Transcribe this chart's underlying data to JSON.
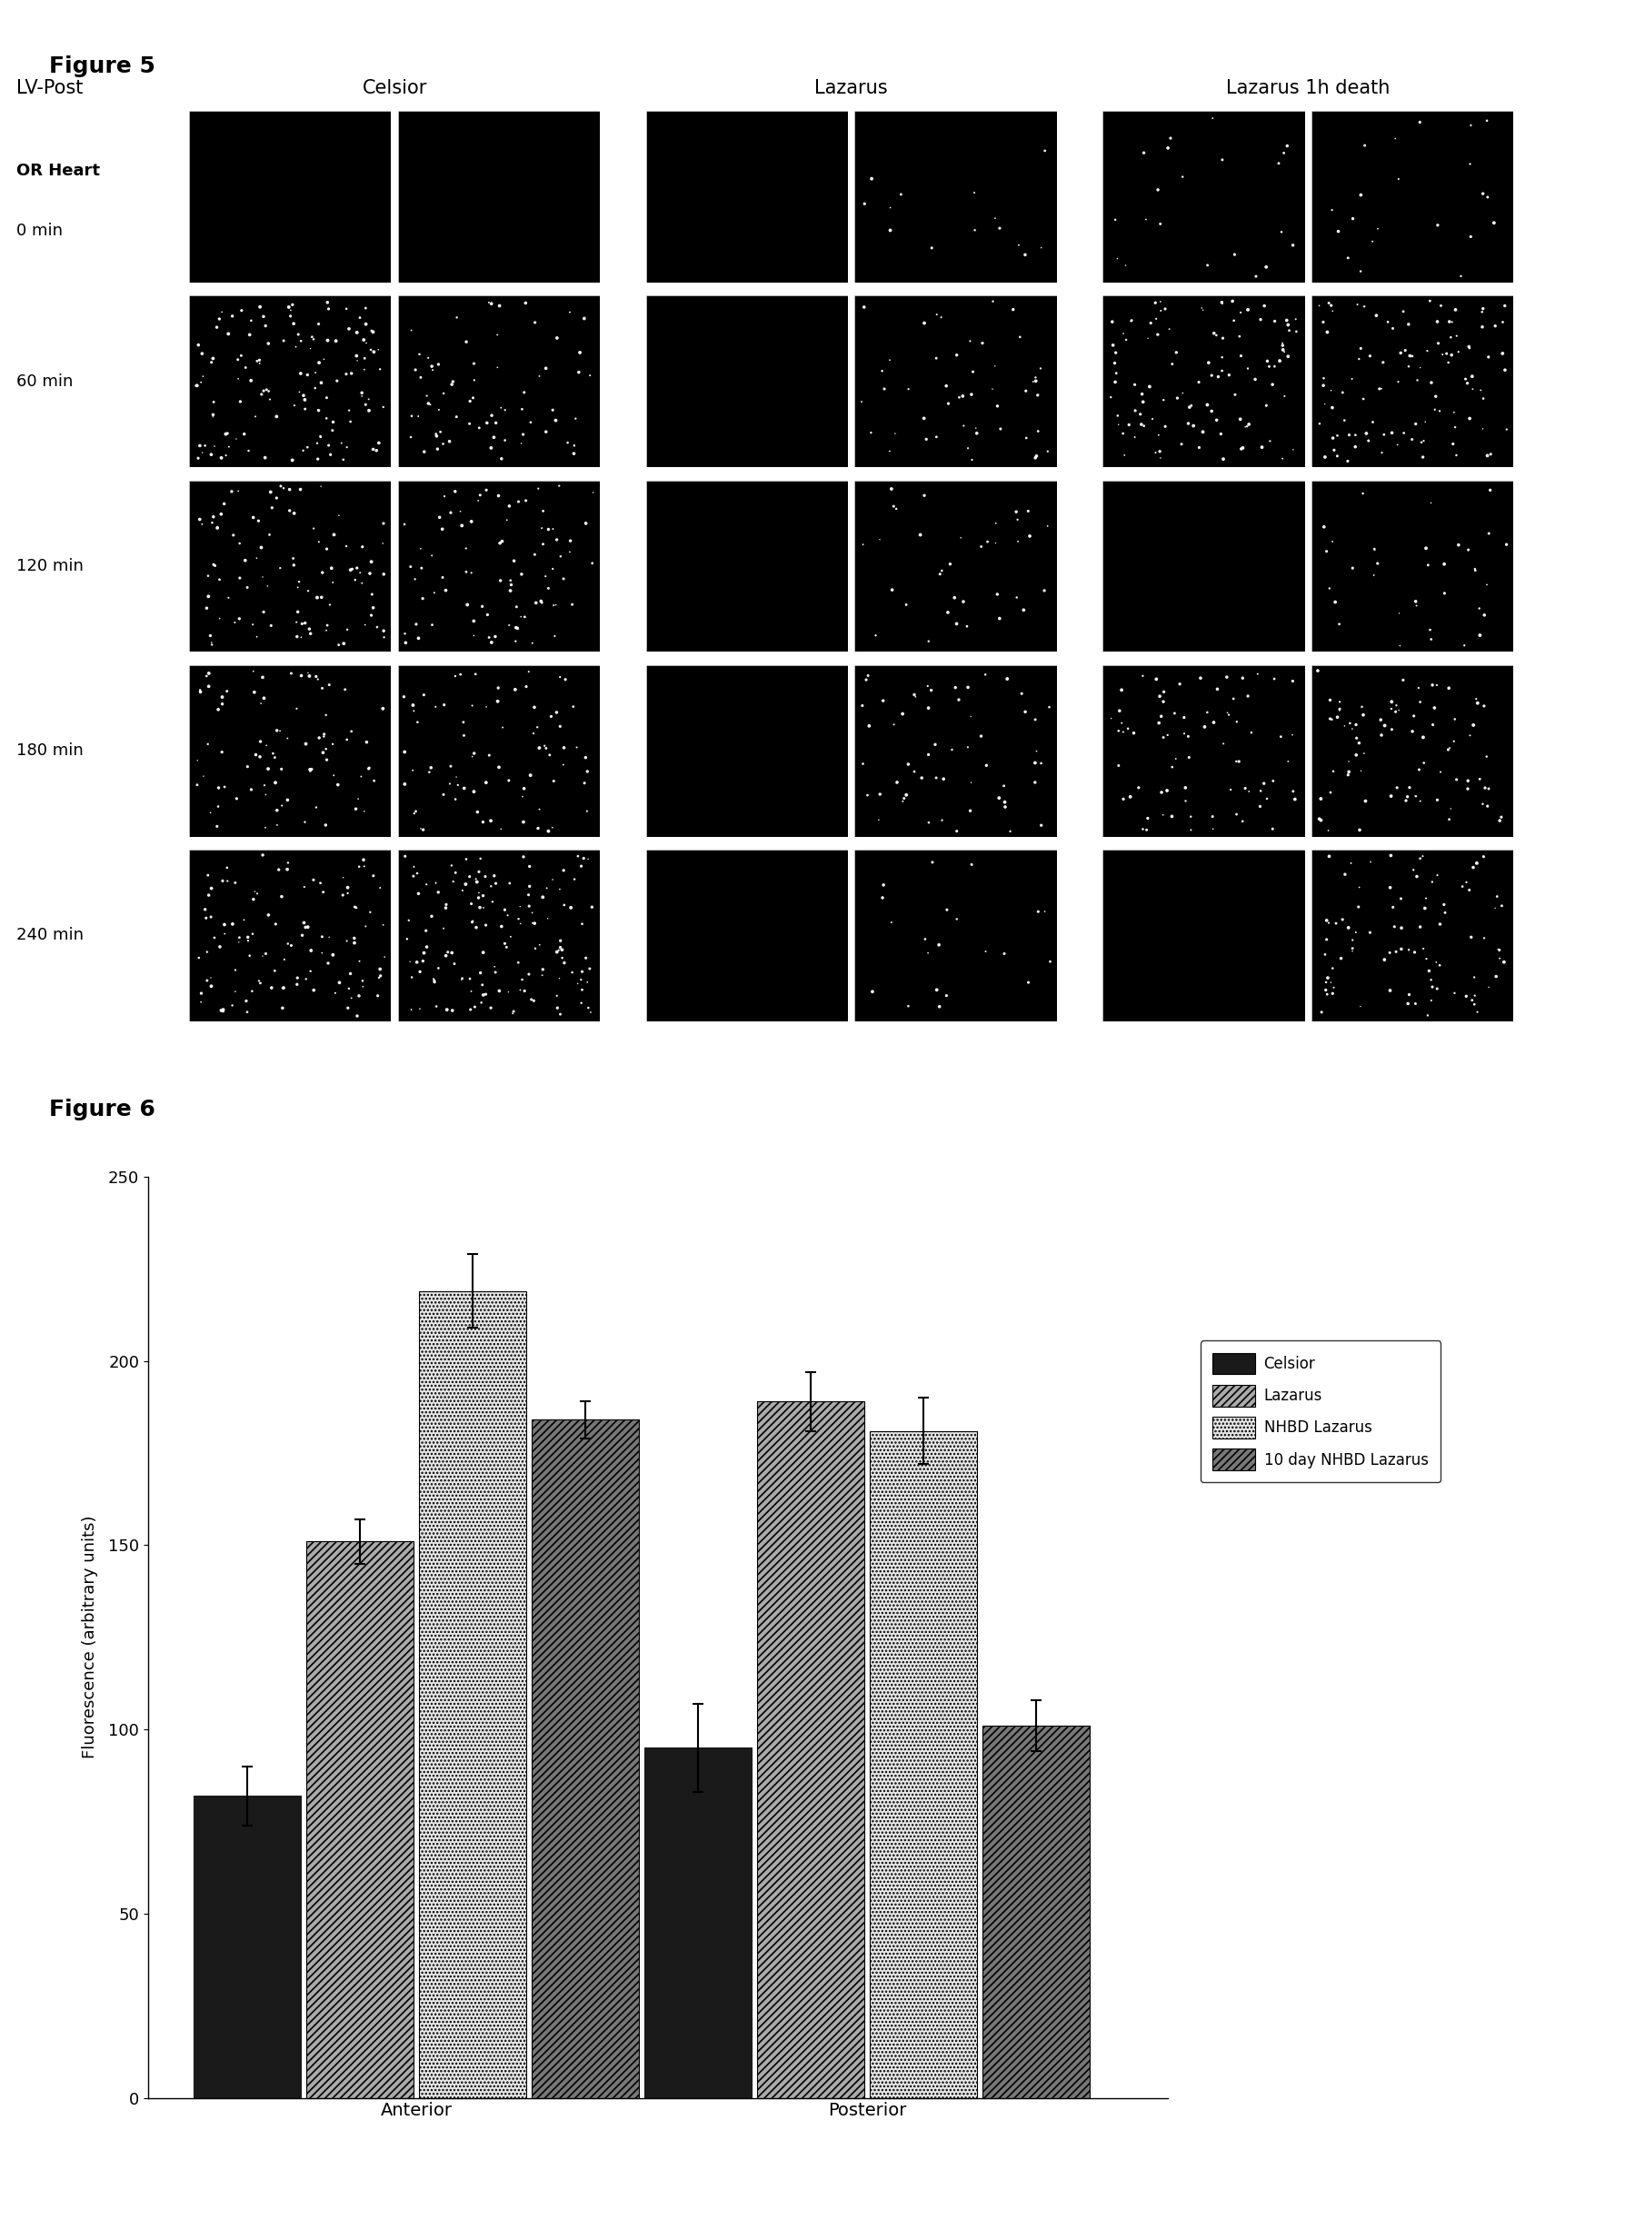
{
  "fig5_title": "Figure 5",
  "fig6_title": "Figure 6",
  "fig5_row_labels": [
    "OR Heart\n0 min",
    "60 min",
    "120 min",
    "180 min",
    "240 min"
  ],
  "fig5_col_group_labels": [
    "Celsior",
    "Lazarus",
    "Lazarus 1h death"
  ],
  "fig5_lv_post_label": "LV-Post",
  "bar_groups": [
    "Anterior",
    "Posterior"
  ],
  "bar_categories": [
    "Celsior",
    "Lazarus",
    "NHBD Lazarus",
    "10 day NHBD Lazarus"
  ],
  "bar_values": {
    "Anterior": [
      82,
      151,
      219,
      184
    ],
    "Posterior": [
      95,
      189,
      181,
      101
    ]
  },
  "bar_errors": {
    "Anterior": [
      8,
      6,
      10,
      5
    ],
    "Posterior": [
      12,
      8,
      9,
      7
    ]
  },
  "ylabel": "Fluorescence (arbitrary units)",
  "ylim": [
    0,
    250
  ],
  "yticks": [
    0,
    50,
    100,
    150,
    200,
    250
  ],
  "legend_labels": [
    "Celsior",
    "Lazarus",
    "NHBD Lazarus",
    "10 day NHBD Lazarus"
  ],
  "brightness": [
    [
      0.0,
      0.0,
      0.0,
      0.04,
      0.06,
      0.06
    ],
    [
      0.38,
      0.2,
      0.0,
      0.14,
      0.32,
      0.3
    ],
    [
      0.28,
      0.24,
      0.0,
      0.1,
      0.0,
      0.1
    ],
    [
      0.24,
      0.22,
      0.0,
      0.16,
      0.22,
      0.24
    ],
    [
      0.32,
      0.42,
      0.0,
      0.06,
      0.0,
      0.26
    ]
  ]
}
